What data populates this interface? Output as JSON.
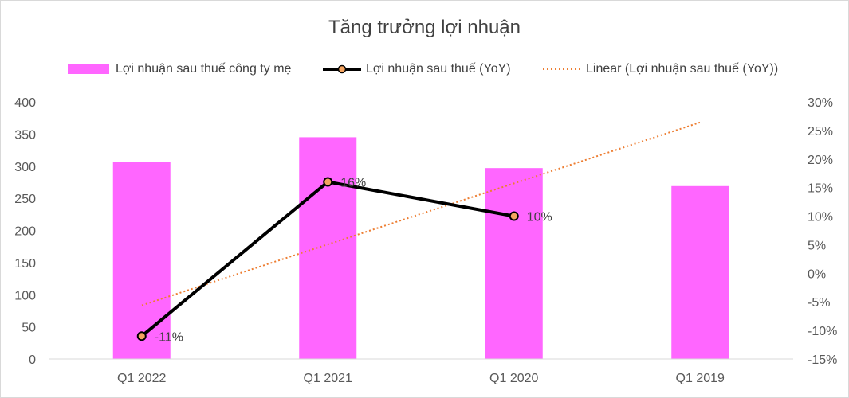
{
  "chart_data": {
    "type": "bar",
    "title": "Tăng trưởng lợi nhuận",
    "categories": [
      "Q1 2022",
      "Q1 2021",
      "Q1 2020",
      "Q1 2019"
    ],
    "series": [
      {
        "name": "Lợi nhuận sau thuế công ty mẹ",
        "type": "bar",
        "axis": "left",
        "color": "#ff66ff",
        "values": [
          306,
          345,
          297,
          269
        ]
      },
      {
        "name": "Lợi nhuận sau thuế (YoY)",
        "type": "line",
        "axis": "right",
        "color": "#000000",
        "marker_fill": "#f4a460",
        "values": [
          -11,
          16,
          10,
          null
        ],
        "data_labels": [
          "-11%",
          "16%",
          "10%",
          ""
        ]
      },
      {
        "name": "Linear (Lợi nhuận sau thuế (YoY))",
        "type": "trendline",
        "axis": "right",
        "color": "#ed7d31",
        "values": [
          -5.6,
          5.4,
          15.4,
          26.4
        ]
      }
    ],
    "y_left": {
      "ylim": [
        0,
        400
      ],
      "ticks": [
        "0",
        "50",
        "100",
        "150",
        "200",
        "250",
        "300",
        "350",
        "400"
      ]
    },
    "y_right": {
      "ylim": [
        -15,
        30
      ],
      "ticks": [
        "-15%",
        "-10%",
        "-5%",
        "0%",
        "5%",
        "10%",
        "15%",
        "20%",
        "25%",
        "30%"
      ]
    },
    "legend_position": "top",
    "grid": false
  }
}
